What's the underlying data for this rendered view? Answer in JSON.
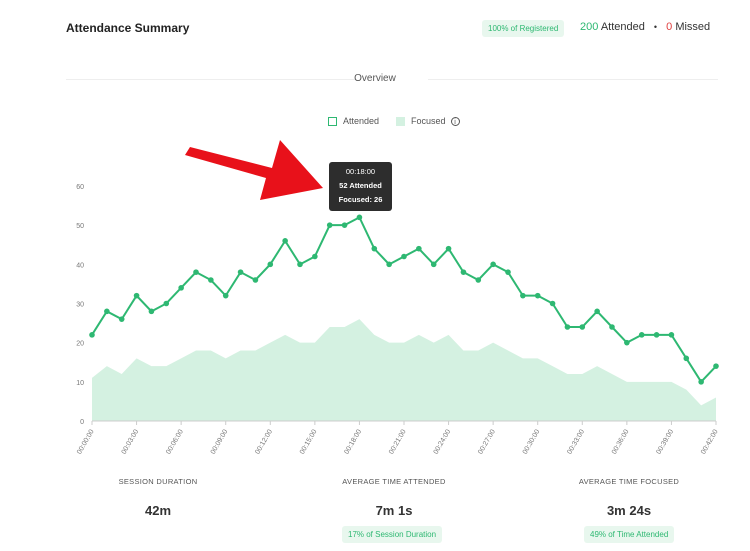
{
  "header": {
    "title": "Attendance Summary",
    "registered_badge": "100% of Registered",
    "attended_count": "200",
    "attended_label": "Attended",
    "missed_count": "0",
    "missed_label": "Missed",
    "separator": "•"
  },
  "overview": {
    "label": "Overview"
  },
  "legend": {
    "attended": "Attended",
    "focused": "Focused",
    "info_icon": "info-icon"
  },
  "tooltip": {
    "time": "00:18:00",
    "attended": "52 Attended",
    "focused": "Focused: 26"
  },
  "stats": [
    {
      "label": "SESSION DURATION",
      "value": "42m",
      "badge": ""
    },
    {
      "label": "AVERAGE TIME ATTENDED",
      "value": "7m 1s",
      "badge": "17% of Session Duration"
    },
    {
      "label": "AVERAGE TIME FOCUSED",
      "value": "3m 24s",
      "badge": "49% of Time Attended"
    }
  ],
  "colors": {
    "accent": "#2eb872",
    "area": "#d4f1e1",
    "missed": "#e04040",
    "arrow": "#e8111a"
  },
  "chart_data": {
    "type": "line",
    "ylim": [
      0,
      60
    ],
    "yticks": [
      0,
      10,
      20,
      30,
      40,
      50,
      60
    ],
    "xticks": [
      "00:00:00",
      "00:03:00",
      "00:06:00",
      "00:09:00",
      "00:12:00",
      "00:15:00",
      "00:18:00",
      "00:21:00",
      "00:24:00",
      "00:27:00",
      "00:30:00",
      "00:33:00",
      "00:36:00",
      "00:39:00",
      "00:42:00"
    ],
    "x_minutes": [
      0,
      1,
      2,
      3,
      4,
      5,
      6,
      7,
      8,
      9,
      10,
      11,
      12,
      13,
      14,
      15,
      16,
      17,
      18,
      19,
      20,
      21,
      22,
      23,
      24,
      25,
      26,
      27,
      28,
      29,
      30,
      31,
      32,
      33,
      34,
      35,
      36,
      37,
      38,
      39,
      40,
      41,
      42
    ],
    "series": [
      {
        "name": "Attended",
        "type": "line",
        "values": [
          22,
          28,
          26,
          32,
          28,
          30,
          34,
          38,
          36,
          32,
          38,
          36,
          40,
          46,
          40,
          42,
          50,
          50,
          52,
          44,
          40,
          42,
          44,
          40,
          44,
          38,
          36,
          40,
          38,
          32,
          32,
          30,
          24,
          24,
          28,
          24,
          20,
          22,
          22,
          22,
          16,
          10,
          14
        ]
      },
      {
        "name": "Focused",
        "type": "area",
        "values": [
          11,
          14,
          12,
          16,
          14,
          14,
          16,
          18,
          18,
          16,
          18,
          18,
          20,
          22,
          20,
          20,
          24,
          24,
          26,
          22,
          20,
          20,
          22,
          20,
          22,
          18,
          18,
          20,
          18,
          16,
          16,
          14,
          12,
          12,
          14,
          12,
          10,
          10,
          10,
          10,
          8,
          4,
          6
        ]
      }
    ],
    "highlight": {
      "x": "00:18:00",
      "attended": 52,
      "focused": 26
    },
    "grid": false,
    "legend_position": "top-center"
  }
}
